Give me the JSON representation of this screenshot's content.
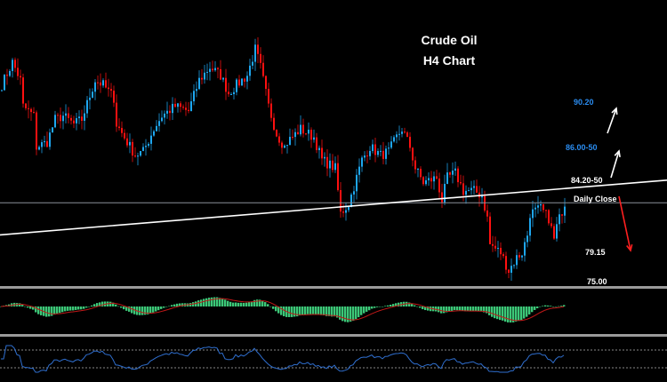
{
  "chart_data": {
    "type": "candlestick",
    "title": "Crude Oil",
    "subtitle": "H4 Chart",
    "timeframe": "H4",
    "colors": {
      "bull": "#1ea7f0",
      "bear": "#ff1010",
      "background": "#000000",
      "macd_hist": "#3cc878",
      "macd_signal": "#c01818",
      "rsi": "#2f6fd0"
    },
    "price_path": [
      [
        0,
        91.6
      ],
      [
        4,
        93.5
      ],
      [
        7,
        92.0
      ],
      [
        8,
        89.8
      ],
      [
        12,
        89.0
      ],
      [
        13,
        86.4
      ],
      [
        17,
        86.8
      ],
      [
        20,
        88.7
      ],
      [
        23,
        89.0
      ],
      [
        27,
        88.3
      ],
      [
        30,
        88.7
      ],
      [
        35,
        92.0
      ],
      [
        38,
        91.6
      ],
      [
        42,
        90.5
      ],
      [
        43,
        88.3
      ],
      [
        47,
        86.8
      ],
      [
        50,
        85.7
      ],
      [
        53,
        86.0
      ],
      [
        57,
        87.9
      ],
      [
        60,
        89.0
      ],
      [
        65,
        89.8
      ],
      [
        70,
        89.4
      ],
      [
        74,
        92.0
      ],
      [
        78,
        93.1
      ],
      [
        82,
        92.4
      ],
      [
        85,
        90.9
      ],
      [
        88,
        91.6
      ],
      [
        92,
        92.4
      ],
      [
        95,
        94.6
      ],
      [
        97,
        93.1
      ],
      [
        100,
        89.8
      ],
      [
        103,
        87.5
      ],
      [
        106,
        86.4
      ],
      [
        107,
        86.8
      ],
      [
        112,
        87.9
      ],
      [
        117,
        87.2
      ],
      [
        120,
        85.3
      ],
      [
        125,
        84.6
      ],
      [
        127,
        80.8
      ],
      [
        130,
        81.6
      ],
      [
        133,
        83.8
      ],
      [
        135,
        85.3
      ],
      [
        138,
        86.4
      ],
      [
        142,
        85.7
      ],
      [
        145,
        86.0
      ],
      [
        148,
        87.2
      ],
      [
        150,
        87.9
      ],
      [
        153,
        86.4
      ],
      [
        155,
        84.6
      ],
      [
        158,
        83.4
      ],
      [
        163,
        83.8
      ],
      [
        165,
        81.9
      ],
      [
        167,
        83.8
      ],
      [
        170,
        84.2
      ],
      [
        173,
        82.7
      ],
      [
        177,
        82.7
      ],
      [
        180,
        82.3
      ],
      [
        182,
        80.4
      ],
      [
        183,
        78.2
      ],
      [
        187,
        77.5
      ],
      [
        190,
        76.0
      ],
      [
        193,
        77.1
      ],
      [
        195,
        77.5
      ],
      [
        197,
        79.0
      ],
      [
        198,
        80.8
      ],
      [
        202,
        81.2
      ],
      [
        205,
        80.4
      ],
      [
        207,
        78.6
      ],
      [
        208,
        79.7
      ],
      [
        211,
        81.7
      ]
    ],
    "levels": [
      {
        "label": "90.20",
        "color": "#2a8cf0"
      },
      {
        "label": "86.00-50",
        "color": "#2a8cf0"
      },
      {
        "label": "84.20-50",
        "color": "#ffffff"
      },
      {
        "label": "Daily Close",
        "value": 81.7,
        "color": "#ffffff"
      },
      {
        "label": "79.15",
        "color": "#ffffff"
      },
      {
        "label": "75.00",
        "color": "#ffffff"
      }
    ],
    "trendline": {
      "start": 79.0,
      "end": 83.6,
      "color": "#ffffff"
    },
    "arrows": [
      {
        "direction": "up",
        "color": "#ffffff"
      },
      {
        "direction": "up",
        "color": "#ffffff"
      },
      {
        "direction": "down",
        "color": "#ff2020"
      }
    ],
    "indicators": [
      {
        "type": "MACD",
        "histogram_color": "#3cc878",
        "signal_color": "#c01818"
      },
      {
        "type": "RSI",
        "levels": [
          70,
          30
        ],
        "color": "#2f6fd0"
      }
    ]
  }
}
